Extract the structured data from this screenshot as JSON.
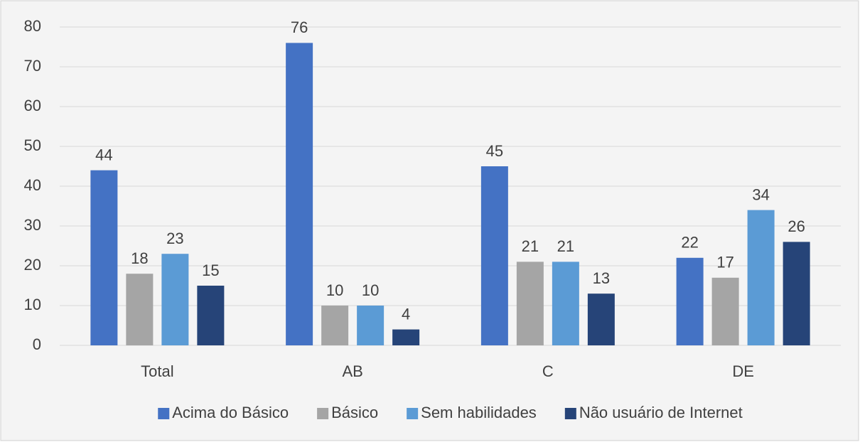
{
  "chart_data": {
    "type": "bar",
    "categories": [
      "Total",
      "AB",
      "C",
      "DE"
    ],
    "series": [
      {
        "name": "Acima do Básico",
        "color": "#4472c4",
        "values": [
          44,
          76,
          45,
          22
        ]
      },
      {
        "name": "Básico",
        "color": "#a5a5a5",
        "values": [
          18,
          10,
          21,
          17
        ]
      },
      {
        "name": "Sem habilidades",
        "color": "#5b9bd5",
        "values": [
          23,
          10,
          21,
          34
        ]
      },
      {
        "name": "Não usuário de Internet",
        "color": "#264478",
        "values": [
          15,
          4,
          13,
          26
        ]
      }
    ],
    "ylim": [
      0,
      80
    ],
    "yticks": [
      0,
      10,
      20,
      30,
      40,
      50,
      60,
      70,
      80
    ],
    "grid": true,
    "legend": "bottom"
  }
}
